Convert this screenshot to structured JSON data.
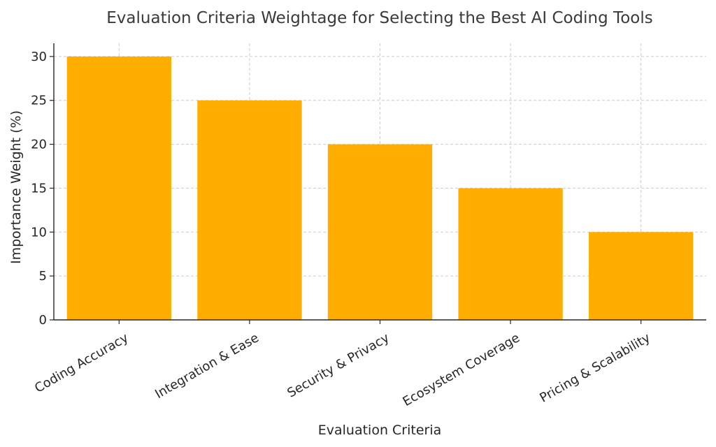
{
  "chart_data": {
    "type": "bar",
    "title": "Evaluation Criteria Weightage for Selecting the Best AI Coding Tools",
    "xlabel": "Evaluation Criteria",
    "ylabel": "Importance Weight (%)",
    "categories": [
      "Coding Accuracy",
      "Integration & Ease",
      "Security & Privacy",
      "Ecosystem Coverage",
      "Pricing & Scalability"
    ],
    "values": [
      30,
      25,
      20,
      15,
      10
    ],
    "ylim": [
      0,
      31.5
    ],
    "yticks": [
      0,
      5,
      10,
      15,
      20,
      25,
      30
    ],
    "grid": true,
    "bar_color": "#ffad00"
  }
}
